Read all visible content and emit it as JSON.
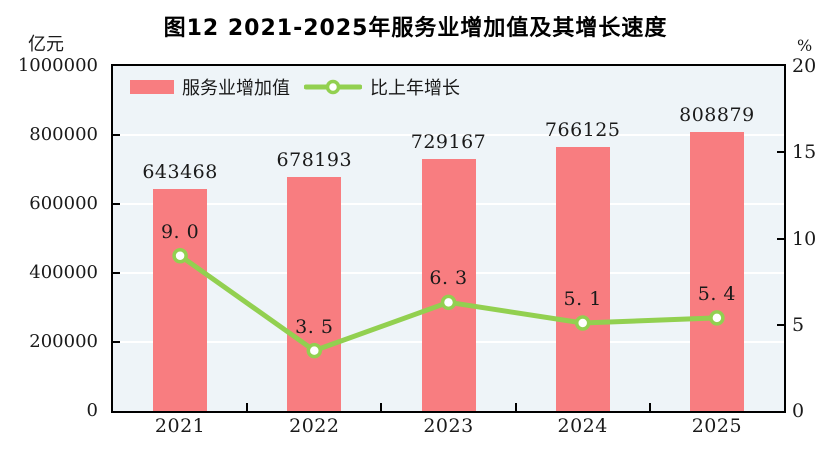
{
  "title": "图12  2021-2025年服务业增加值及其增长速度",
  "axes": {
    "left_unit": "亿元",
    "right_unit": "%",
    "left_tick_labels": [
      "0",
      "200000",
      "400000",
      "600000",
      "800000",
      "1000000"
    ],
    "right_tick_labels": [
      "0",
      "5",
      "10",
      "15",
      "20"
    ]
  },
  "legend": {
    "bar_label": "服务业增加值",
    "line_label": "比上年增长"
  },
  "colors": {
    "bar": "#f87d80",
    "line": "#92d050",
    "marker_fill": "#ffffff",
    "plot_background": "#eef4f8",
    "plot_border": "#000000",
    "gridline": "#ffffff",
    "text": "#1a1a1a"
  },
  "chart_data": {
    "type": "bar",
    "title": "图12  2021-2025年服务业增加值及其增长速度",
    "categories": [
      "2021",
      "2022",
      "2023",
      "2024",
      "2025"
    ],
    "series": [
      {
        "name": "服务业增加值",
        "type": "bar",
        "axis": "left",
        "values": [
          643468,
          678193,
          729167,
          766125,
          808879
        ],
        "labels": [
          "643468",
          "678193",
          "729167",
          "766125",
          "808879"
        ],
        "color": "#f87d80"
      },
      {
        "name": "比上年增长",
        "type": "line",
        "axis": "right",
        "values": [
          9.0,
          3.5,
          6.3,
          5.1,
          5.4
        ],
        "labels": [
          "9. 0",
          "3. 5",
          "6. 3",
          "5. 1",
          "5. 4"
        ],
        "color": "#92d050"
      }
    ],
    "left_axis": {
      "label": "亿元",
      "min": 0,
      "max": 1000000,
      "tick_step": 200000
    },
    "right_axis": {
      "label": "%",
      "min": 0,
      "max": 20,
      "tick_step": 5
    },
    "grid": true,
    "legend_position": "top-left-inside"
  }
}
